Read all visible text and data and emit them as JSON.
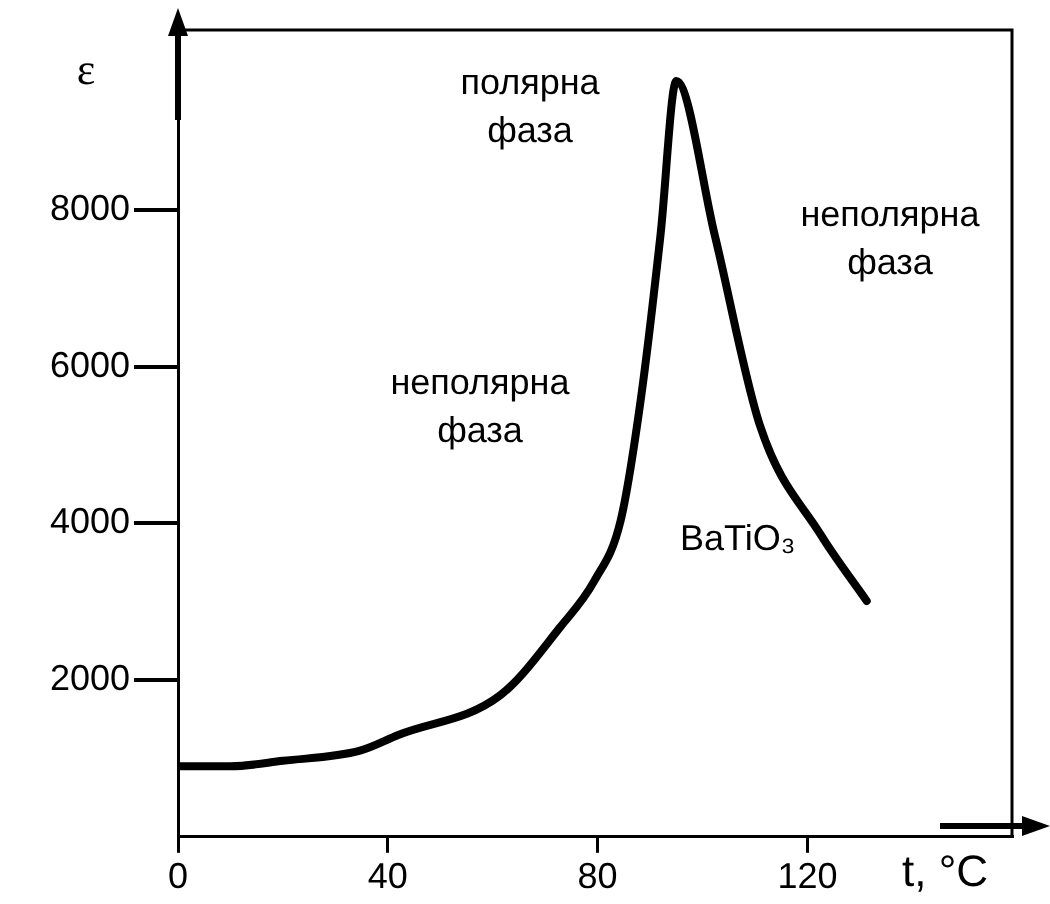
{
  "chart_data": {
    "type": "line",
    "xlabel": "t, °C",
    "ylabel": "ε",
    "annotations": [
      "полярна фаза",
      "неполярна фаза",
      "неполярна фаза",
      "BaTiO₃"
    ],
    "x": [
      0,
      10,
      20,
      34.7,
      42,
      61.5,
      72.9,
      79.4,
      84.4,
      88.2,
      92,
      95,
      102.3,
      111,
      122.5,
      131.3
    ],
    "series": [
      {
        "color": "#000000",
        "values": [
          900,
          900,
          970,
          1100,
          1300,
          1810,
          2680,
          3270,
          4040,
          5570,
          7690,
          9650,
          7690,
          5240,
          3860,
          3010
        ]
      }
    ],
    "xlim": [
      0,
      159
    ],
    "ylim": [
      0,
      10300
    ],
    "xticks": [
      0,
      40,
      80,
      120
    ],
    "yticks": [
      {
        "value": 2000,
        "label": "2000"
      },
      {
        "value": 4000,
        "label": "4000"
      },
      {
        "value": 6000,
        "label": "6000"
      },
      {
        "value": 8000,
        "label": "8000"
      }
    ],
    "grid": false,
    "legend": false,
    "marker": "none",
    "line_style": "solid"
  }
}
